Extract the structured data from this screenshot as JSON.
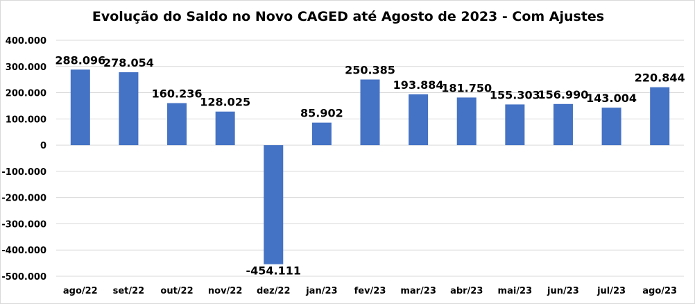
{
  "chart_data": {
    "type": "bar",
    "title": "Evolução do Saldo no Novo CAGED até Agosto de 2023 - Com Ajustes",
    "xlabel": "",
    "ylabel": "",
    "categories": [
      "ago/22",
      "set/22",
      "out/22",
      "nov/22",
      "dez/22",
      "jan/23",
      "fev/23",
      "mar/23",
      "abr/23",
      "mai/23",
      "jun/23",
      "jul/23",
      "ago/23"
    ],
    "values": [
      288096,
      278054,
      160236,
      128025,
      -454111,
      85902,
      250385,
      193884,
      181750,
      155303,
      156990,
      143004,
      220844
    ],
    "data_labels": [
      "288.096",
      "278.054",
      "160.236",
      "128.025",
      "-454.111",
      "85.902",
      "250.385",
      "193.884",
      "181.750",
      "155.303",
      "156.990",
      "143.004",
      "220.844"
    ],
    "ylim": [
      -500000,
      400000
    ],
    "yticks": [
      400000,
      300000,
      200000,
      100000,
      0,
      -100000,
      -200000,
      -300000,
      -400000,
      -500000
    ],
    "ytick_labels": [
      "400.000",
      "300.000",
      "200.000",
      "100.000",
      "0",
      "-100.000",
      "-200.000",
      "-300.000",
      "-400.000",
      "-500.000"
    ],
    "grid": true,
    "legend": "none",
    "colors": {
      "bar": "#4472c4",
      "grid": "#d9d9d9"
    }
  }
}
